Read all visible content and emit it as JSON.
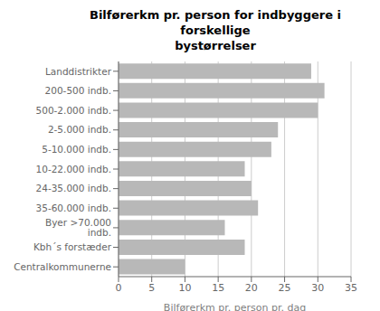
{
  "chart_data": {
    "type": "bar",
    "orientation": "horizontal",
    "title": "Bilførerkm pr. person for indbyggere i forskellige\nbystørrelser",
    "x_label": "Bilførerkm pr. person pr. dag",
    "categories": [
      "Landdistrikter",
      "200-500 indb.",
      "500-2.000 indb.",
      "2-5.000 indb.",
      "5-10.000 indb.",
      "10-22.000 indb.",
      "24-35.000 indb.",
      "35-60.000 indb.",
      "Byer >70.000 indb.",
      "Kbh´s forstæder",
      "Centralkommunerne"
    ],
    "values": [
      29,
      31,
      30,
      24,
      23,
      19,
      20,
      21,
      16,
      19,
      10
    ],
    "color": "#b8b8b8",
    "xlim": [
      0,
      35
    ],
    "xticks": [
      0,
      5,
      10,
      15,
      20,
      25,
      30,
      35
    ],
    "grid": true
  }
}
